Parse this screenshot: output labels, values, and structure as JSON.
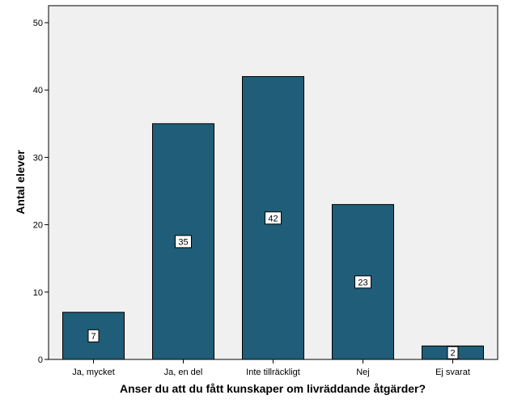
{
  "chart_data": {
    "type": "bar",
    "categories": [
      "Ja, mycket",
      "Ja, en del",
      "Inte tillräckligt",
      "Nej",
      "Ej svarat"
    ],
    "values": [
      7,
      35,
      42,
      23,
      2
    ],
    "data_labels": [
      "7",
      "35",
      "42",
      "23",
      "2"
    ],
    "xlabel": "Anser du att du fått kunskaper om livräddande åtgärder?",
    "ylabel": "Antal elever",
    "ylim": [
      0,
      50
    ],
    "yticks": [
      0,
      10,
      20,
      30,
      40,
      50
    ],
    "grid": false,
    "legend": "none",
    "colors": {
      "bar": "#1f5d78",
      "bar_outline": "#000000",
      "plot_background": "#f0f0f0",
      "page_background": "#ffffff"
    }
  }
}
